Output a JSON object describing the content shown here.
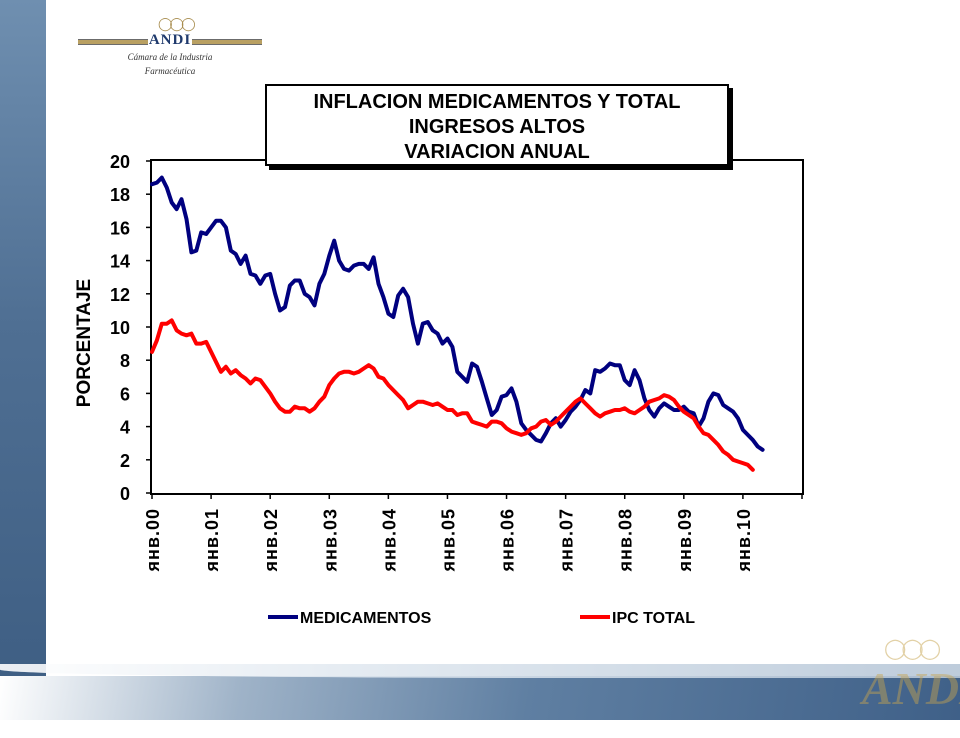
{
  "logo": {
    "name": "ANDI",
    "tagline1": "Cámara de la Industria",
    "tagline2": "Farmacéutica",
    "corner": "ANDI"
  },
  "chart_data": {
    "type": "line",
    "title_lines": [
      "INFLACION MEDICAMENTOS Y TOTAL",
      "INGRESOS ALTOS",
      "VARIACION ANUAL"
    ],
    "xlabel": "",
    "ylabel": "PORCENTAJE",
    "ylim": [
      0,
      20
    ],
    "yticks": [
      0,
      2,
      4,
      6,
      8,
      10,
      12,
      14,
      16,
      18,
      20
    ],
    "xlim": [
      0,
      132
    ],
    "xtick_labels": [
      "янв.00",
      "янв.01",
      "янв.02",
      "янв.03",
      "янв.04",
      "янв.05",
      "янв.06",
      "янв.07",
      "янв.08",
      "янв.09",
      "янв.10"
    ],
    "legend_position": "bottom",
    "grid": false,
    "series": [
      {
        "name": "MEDICAMENTOS",
        "color": "#00007f",
        "values": [
          18.6,
          18.7,
          19.0,
          18.4,
          17.5,
          17.1,
          17.7,
          16.5,
          14.5,
          14.6,
          15.7,
          15.6,
          16.0,
          16.4,
          16.4,
          16.0,
          14.6,
          14.4,
          13.8,
          14.3,
          13.2,
          13.1,
          12.6,
          13.1,
          13.2,
          12.0,
          11.0,
          11.2,
          12.5,
          12.8,
          12.8,
          12.0,
          11.8,
          11.3,
          12.6,
          13.2,
          14.3,
          15.2,
          14.0,
          13.5,
          13.4,
          13.7,
          13.8,
          13.8,
          13.5,
          14.2,
          12.6,
          11.8,
          10.8,
          10.6,
          11.9,
          12.3,
          11.8,
          10.2,
          9.0,
          10.2,
          10.3,
          9.8,
          9.6,
          9.0,
          9.3,
          8.8,
          7.3,
          7.0,
          6.7,
          7.8,
          7.6,
          6.7,
          5.7,
          4.7,
          5.0,
          5.8,
          5.9,
          6.3,
          5.5,
          4.2,
          3.8,
          3.5,
          3.2,
          3.1,
          3.6,
          4.2,
          4.5,
          4.0,
          4.4,
          4.9,
          5.2,
          5.6,
          6.2,
          6.0,
          7.4,
          7.3,
          7.5,
          7.8,
          7.7,
          7.7,
          6.8,
          6.5,
          7.4,
          6.8,
          5.7,
          5.0,
          4.6,
          5.1,
          5.4,
          5.2,
          5.0,
          5.0,
          5.2,
          4.9,
          4.8,
          4.0,
          4.5,
          5.5,
          6.0,
          5.9,
          5.3,
          5.1,
          4.9,
          4.5,
          3.8,
          3.5,
          3.2,
          2.8,
          2.6
        ],
        "x_start": 0
      },
      {
        "name": "IPC TOTAL",
        "color": "#ff0000",
        "values": [
          8.5,
          9.2,
          10.2,
          10.2,
          10.4,
          9.8,
          9.6,
          9.5,
          9.6,
          9.0,
          9.0,
          9.1,
          8.5,
          7.9,
          7.3,
          7.6,
          7.2,
          7.4,
          7.1,
          6.9,
          6.6,
          6.9,
          6.8,
          6.4,
          6.0,
          5.5,
          5.1,
          4.9,
          4.9,
          5.2,
          5.1,
          5.1,
          4.9,
          5.1,
          5.5,
          5.8,
          6.5,
          6.9,
          7.2,
          7.3,
          7.3,
          7.2,
          7.3,
          7.5,
          7.7,
          7.5,
          7.0,
          6.9,
          6.5,
          6.2,
          5.9,
          5.6,
          5.1,
          5.3,
          5.5,
          5.5,
          5.4,
          5.3,
          5.4,
          5.2,
          5.0,
          5.0,
          4.7,
          4.8,
          4.8,
          4.3,
          4.2,
          4.1,
          4.0,
          4.3,
          4.3,
          4.2,
          3.9,
          3.7,
          3.6,
          3.5,
          3.6,
          3.9,
          4.0,
          4.3,
          4.4,
          4.1,
          4.3,
          4.6,
          4.9,
          5.2,
          5.5,
          5.7,
          5.4,
          5.1,
          4.8,
          4.6,
          4.8,
          4.9,
          5.0,
          5.0,
          5.1,
          4.9,
          4.8,
          5.0,
          5.2,
          5.5,
          5.6,
          5.7,
          5.9,
          5.8,
          5.6,
          5.2,
          4.9,
          4.7,
          4.5,
          4.0,
          3.6,
          3.5,
          3.2,
          2.9,
          2.5,
          2.3,
          2.0,
          1.9,
          1.8,
          1.7,
          1.4
        ],
        "x_start": 0
      }
    ]
  }
}
